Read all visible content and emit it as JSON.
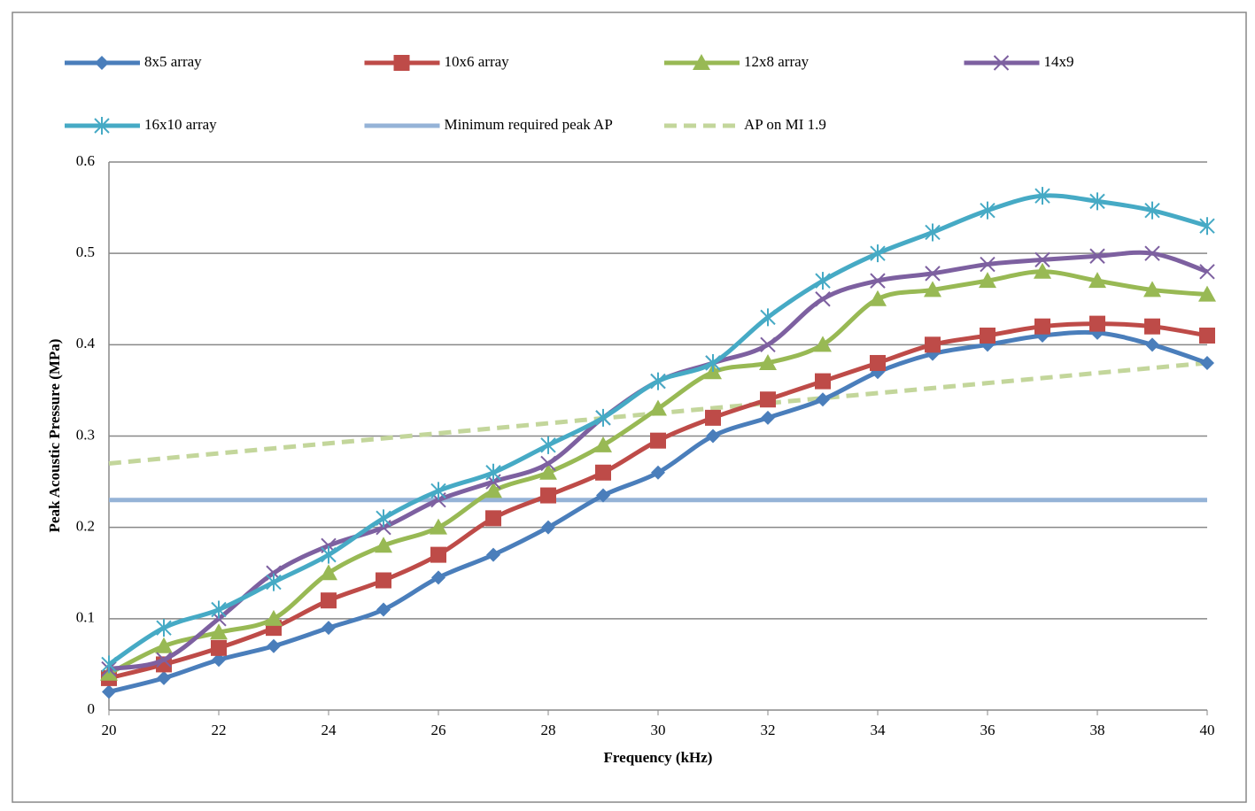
{
  "chart_data": {
    "type": "line",
    "x_label": "Frequency (kHz)",
    "y_label": "Peak Acoustic Pressure (MPa)",
    "x": [
      20,
      21,
      22,
      23,
      24,
      25,
      26,
      27,
      28,
      29,
      30,
      31,
      32,
      33,
      34,
      35,
      36,
      37,
      38,
      39,
      40
    ],
    "xlim": [
      20,
      40
    ],
    "xticks": [
      20,
      22,
      24,
      26,
      28,
      30,
      32,
      34,
      36,
      38,
      40
    ],
    "ylim": [
      0,
      0.6
    ],
    "yticks": [
      0,
      0.1,
      0.2,
      0.3,
      0.4,
      0.5,
      0.6
    ],
    "grid": true,
    "legend": "top",
    "series": [
      {
        "name": "8x5 array",
        "color": "#4a7ebb",
        "marker": "diamond",
        "values": [
          0.02,
          0.035,
          0.055,
          0.07,
          0.09,
          0.11,
          0.145,
          0.17,
          0.2,
          0.235,
          0.26,
          0.3,
          0.32,
          0.34,
          0.37,
          0.39,
          0.4,
          0.41,
          0.413,
          0.4,
          0.38
        ]
      },
      {
        "name": "10x6 array",
        "color": "#be4b48",
        "marker": "square",
        "values": [
          0.035,
          0.05,
          0.068,
          0.09,
          0.12,
          0.142,
          0.17,
          0.21,
          0.235,
          0.26,
          0.295,
          0.32,
          0.34,
          0.36,
          0.38,
          0.4,
          0.41,
          0.42,
          0.423,
          0.42,
          0.41
        ]
      },
      {
        "name": "12x8 array",
        "color": "#98b954",
        "marker": "triangle",
        "values": [
          0.04,
          0.07,
          0.085,
          0.1,
          0.15,
          0.18,
          0.2,
          0.24,
          0.26,
          0.29,
          0.33,
          0.37,
          0.38,
          0.4,
          0.45,
          0.46,
          0.47,
          0.48,
          0.47,
          0.46,
          0.455
        ]
      },
      {
        "name": "14x9",
        "color": "#7d60a0",
        "marker": "x",
        "values": [
          0.045,
          0.055,
          0.1,
          0.15,
          0.18,
          0.2,
          0.23,
          0.25,
          0.27,
          0.32,
          0.36,
          0.38,
          0.4,
          0.45,
          0.47,
          0.478,
          0.488,
          0.493,
          0.497,
          0.5,
          0.48
        ]
      },
      {
        "name": "16x10 array",
        "color": "#46aac5",
        "marker": "star",
        "values": [
          0.05,
          0.09,
          0.11,
          0.14,
          0.17,
          0.21,
          0.24,
          0.26,
          0.29,
          0.32,
          0.36,
          0.38,
          0.43,
          0.47,
          0.5,
          0.523,
          0.547,
          0.563,
          0.557,
          0.547,
          0.53
        ]
      },
      {
        "name": "Minimum required peak AP",
        "color": "#95b3d7",
        "marker": "none",
        "values": [
          0.23,
          0.23,
          0.23,
          0.23,
          0.23,
          0.23,
          0.23,
          0.23,
          0.23,
          0.23,
          0.23,
          0.23,
          0.23,
          0.23,
          0.23,
          0.23,
          0.23,
          0.23,
          0.23,
          0.23,
          0.23
        ]
      },
      {
        "name": "AP on MI 1.9",
        "color": "#c3d69b",
        "marker": "none",
        "dash": true,
        "values": [
          0.27,
          0.2755,
          0.281,
          0.2865,
          0.292,
          0.2975,
          0.303,
          0.3085,
          0.314,
          0.3195,
          0.325,
          0.3305,
          0.336,
          0.3415,
          0.347,
          0.3525,
          0.358,
          0.3635,
          0.369,
          0.3745,
          0.38
        ]
      }
    ]
  }
}
